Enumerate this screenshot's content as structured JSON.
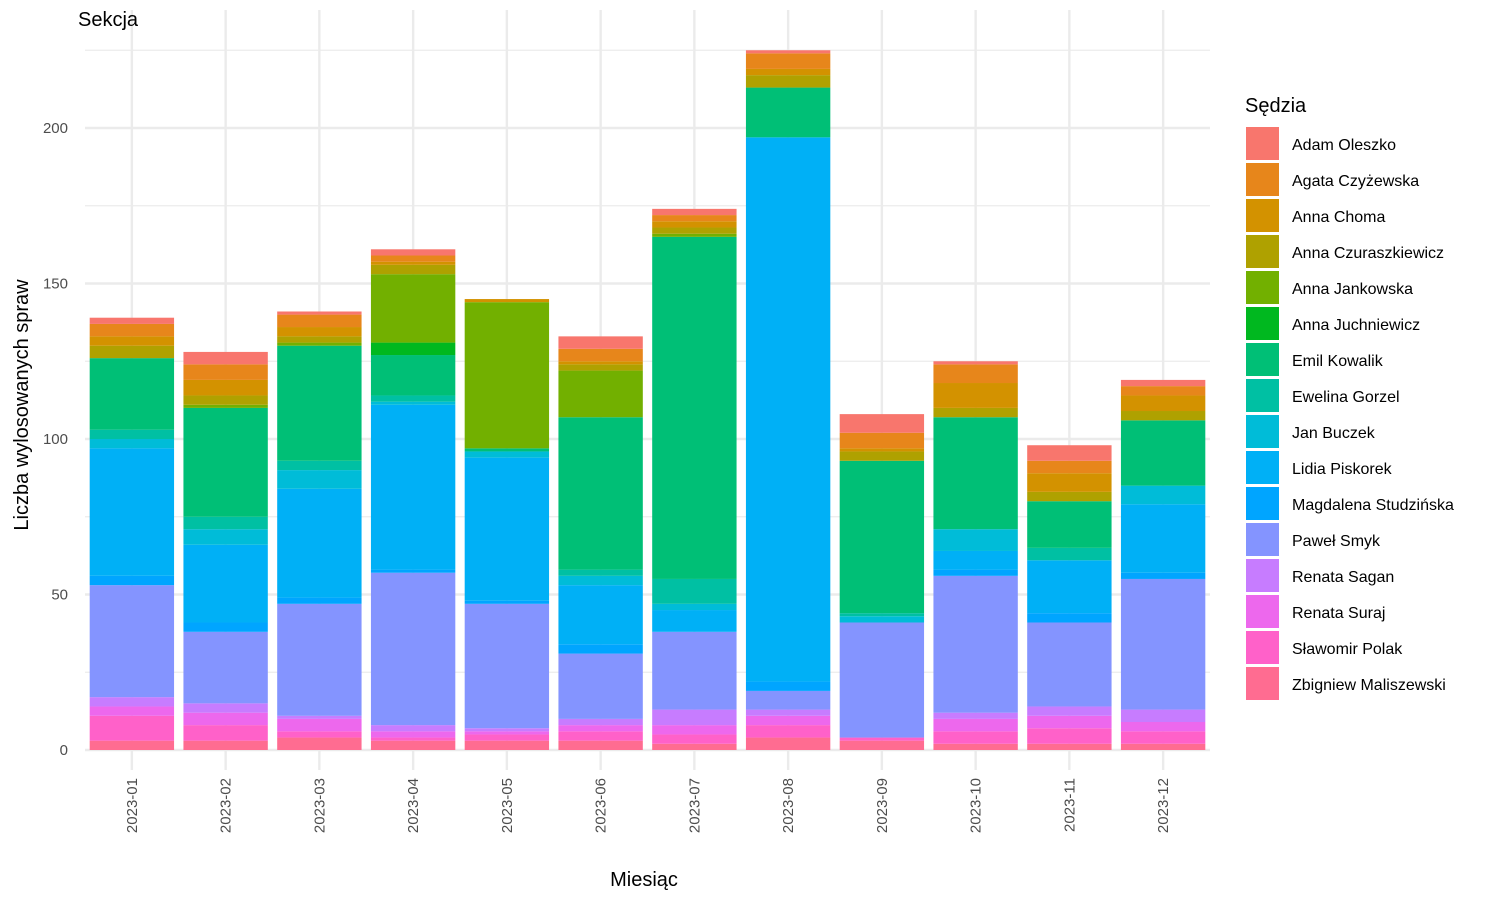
{
  "chart_data": {
    "type": "bar",
    "stacked": true,
    "title": "Sekcja",
    "xlabel": "Miesiąc",
    "ylabel": "Liczba wylosowanych spraw",
    "ylim": [
      0,
      227
    ],
    "yticks": [
      0,
      50,
      100,
      150,
      200
    ],
    "grid": true,
    "legend": {
      "title": "Sędzia",
      "position": "right"
    },
    "categories": [
      "2023-01",
      "2023-02",
      "2023-03",
      "2023-04",
      "2023-05",
      "2023-06",
      "2023-07",
      "2023-08",
      "2023-09",
      "2023-10",
      "2023-11",
      "2023-12"
    ],
    "series": [
      {
        "name": "Adam Oleszko",
        "color": "#F8766D",
        "values": [
          2,
          4,
          1,
          2,
          0,
          4,
          2,
          1,
          6,
          1,
          5,
          2
        ]
      },
      {
        "name": "Agata Czyżewska",
        "color": "#E7861B",
        "values": [
          4,
          5,
          4,
          2,
          0,
          4,
          2,
          5,
          5,
          6,
          4,
          3
        ]
      },
      {
        "name": "Anna Choma",
        "color": "#D39200",
        "values": [
          3,
          5,
          3,
          1,
          1,
          1,
          2,
          2,
          1,
          8,
          6,
          5
        ]
      },
      {
        "name": "Anna Czuraszkiewicz",
        "color": "#AFA100",
        "values": [
          4,
          3,
          2,
          3,
          0,
          2,
          2,
          4,
          3,
          3,
          3,
          3
        ]
      },
      {
        "name": "Anna Jankowska",
        "color": "#72B000",
        "values": [
          0,
          1,
          1,
          22,
          47,
          15,
          1,
          0,
          0,
          0,
          0,
          0
        ]
      },
      {
        "name": "Anna Juchniewicz",
        "color": "#00B81F",
        "values": [
          0,
          0,
          0,
          4,
          0,
          0,
          0,
          0,
          0,
          0,
          0,
          0
        ]
      },
      {
        "name": "Emil Kowalik",
        "color": "#00BF76",
        "values": [
          23,
          35,
          37,
          13,
          1,
          49,
          110,
          16,
          49,
          36,
          15,
          21
        ]
      },
      {
        "name": "Ewelina Gorzel",
        "color": "#00C0A3",
        "values": [
          3,
          4,
          3,
          2,
          0,
          2,
          8,
          0,
          1,
          0,
          4,
          0
        ]
      },
      {
        "name": "Jan Buczek",
        "color": "#00BCD8",
        "values": [
          3,
          5,
          6,
          1,
          2,
          3,
          2,
          0,
          2,
          7,
          0,
          6
        ]
      },
      {
        "name": "Lidia Piskorek",
        "color": "#00B0F6",
        "values": [
          41,
          25,
          35,
          53,
          46,
          19,
          7,
          175,
          0,
          6,
          17,
          22
        ]
      },
      {
        "name": "Magdalena Studzińska",
        "color": "#00A5FF",
        "values": [
          3,
          3,
          2,
          1,
          1,
          3,
          0,
          3,
          0,
          2,
          3,
          2
        ]
      },
      {
        "name": "Paweł Smyk",
        "color": "#8494FF",
        "values": [
          36,
          23,
          36,
          49,
          40,
          21,
          25,
          6,
          37,
          44,
          27,
          42
        ]
      },
      {
        "name": "Renata Sagan",
        "color": "#C77CFF",
        "values": [
          3,
          3,
          1,
          2,
          1,
          2,
          5,
          2,
          0,
          2,
          3,
          4
        ]
      },
      {
        "name": "Renata Suraj",
        "color": "#ED68ED",
        "values": [
          3,
          4,
          4,
          2,
          1,
          2,
          3,
          3,
          0,
          4,
          4,
          3
        ]
      },
      {
        "name": "Sławomir Polak",
        "color": "#FF61C9",
        "values": [
          8,
          5,
          2,
          1,
          2,
          3,
          3,
          4,
          1,
          4,
          5,
          4
        ]
      },
      {
        "name": "Zbigniew Maliszewski",
        "color": "#FF6C91",
        "values": [
          3,
          3,
          4,
          3,
          3,
          3,
          2,
          4,
          3,
          2,
          2,
          2
        ]
      }
    ]
  }
}
